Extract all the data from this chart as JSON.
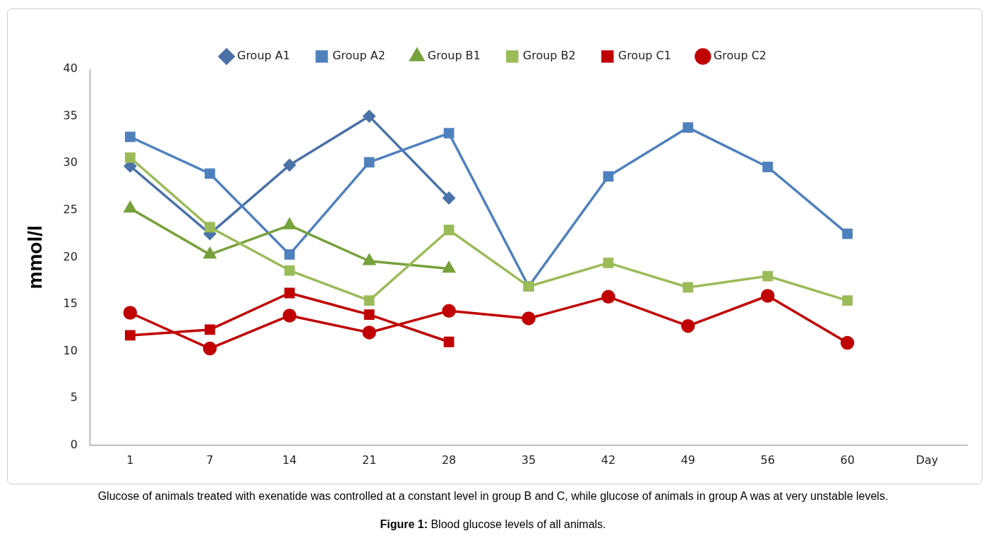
{
  "chart_data": {
    "type": "line",
    "xlabel": "Day",
    "ylabel": "mmol/l",
    "categories": [
      "1",
      "7",
      "14",
      "21",
      "28",
      "35",
      "42",
      "49",
      "56",
      "60"
    ],
    "series": [
      {
        "name": "Group A1",
        "color": "#4a72a8",
        "marker": "diamond",
        "values": [
          29.7,
          22.5,
          29.8,
          35,
          26.3,
          null,
          null,
          null,
          null,
          null
        ]
      },
      {
        "name": "Group A2",
        "color": "#4f81bd",
        "marker": "square",
        "values": [
          32.8,
          28.9,
          20.3,
          30.1,
          33.2,
          16.9,
          28.6,
          33.8,
          29.6,
          22.5
        ]
      },
      {
        "name": "Group B1",
        "color": "#77a13b",
        "marker": "triangle",
        "values": [
          25.2,
          20.3,
          23.4,
          19.6,
          18.8,
          null,
          null,
          null,
          null,
          null
        ]
      },
      {
        "name": "Group B2",
        "color": "#9bbb59",
        "marker": "square",
        "values": [
          30.6,
          23.2,
          18.6,
          15.4,
          22.9,
          16.9,
          19.4,
          16.8,
          18.0,
          15.4
        ]
      },
      {
        "name": "Group C1",
        "color": "#c00000",
        "marker": "square",
        "values": [
          11.7,
          12.3,
          16.2,
          13.9,
          11.0,
          null,
          null,
          null,
          null,
          null
        ]
      },
      {
        "name": "Group C2",
        "color": "#c00000",
        "marker": "circle",
        "values": [
          14.1,
          10.3,
          13.8,
          12.0,
          14.3,
          13.5,
          15.8,
          12.7,
          15.9,
          10.9
        ]
      }
    ],
    "ylim": [
      0,
      40
    ],
    "yticks": [
      0,
      5,
      10,
      15,
      20,
      25,
      30,
      35,
      40
    ],
    "grid": false,
    "legend": "top",
    "annotations": [
      "Glucose of animals treated with exenatide was controlled at a constant level in group B and C, while glucose of animals in group A was at very unstable levels.",
      "Figure 1: Blood glucose levels of all animals."
    ]
  }
}
